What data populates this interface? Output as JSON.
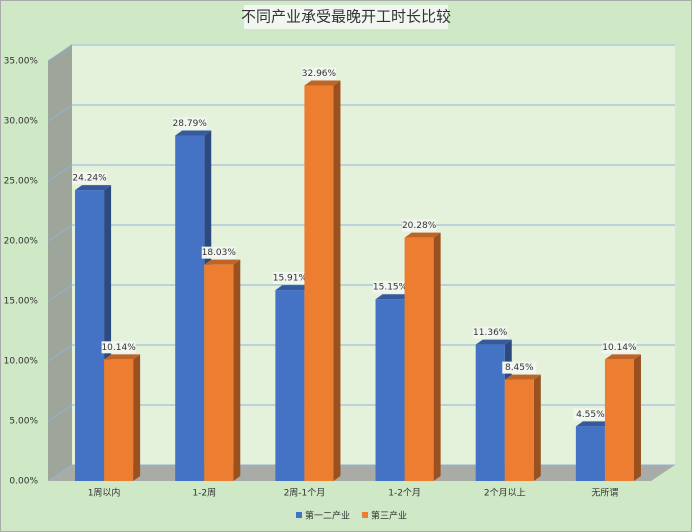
{
  "chart_data": {
    "type": "bar3d",
    "title": "不同产业承受最晚开工时长比较",
    "categories": [
      "1周以内",
      "1-2周",
      "2周-1个月",
      "1-2个月",
      "2个月以上",
      "无所谓"
    ],
    "series": [
      {
        "name": "第一二产业",
        "color": "#4472c4",
        "values": [
          24.24,
          28.79,
          15.91,
          15.15,
          11.36,
          4.55
        ],
        "value_labels": [
          "24.24%",
          "28.79%",
          "15.91%",
          "15.15%",
          "11.36%",
          "4.55%"
        ]
      },
      {
        "name": "第三产业",
        "color": "#ed7d31",
        "values": [
          10.14,
          18.03,
          32.96,
          20.28,
          8.45,
          10.14
        ],
        "value_labels": [
          "10.14%",
          "18.03%",
          "32.96%",
          "20.28%",
          "8.45%",
          "10.14%"
        ]
      }
    ],
    "ylim": [
      0,
      35
    ],
    "yticks": [
      {
        "value": 0,
        "label": "0.00%"
      },
      {
        "value": 5,
        "label": "5.00%"
      },
      {
        "value": 10,
        "label": "10.00%"
      },
      {
        "value": 15,
        "label": "15.00%"
      },
      {
        "value": 20,
        "label": "20.00%"
      },
      {
        "value": 25,
        "label": "25.00%"
      },
      {
        "value": 30,
        "label": "30.00%"
      },
      {
        "value": 35,
        "label": "35.00%"
      }
    ],
    "grid": true,
    "legend": "bottom"
  }
}
